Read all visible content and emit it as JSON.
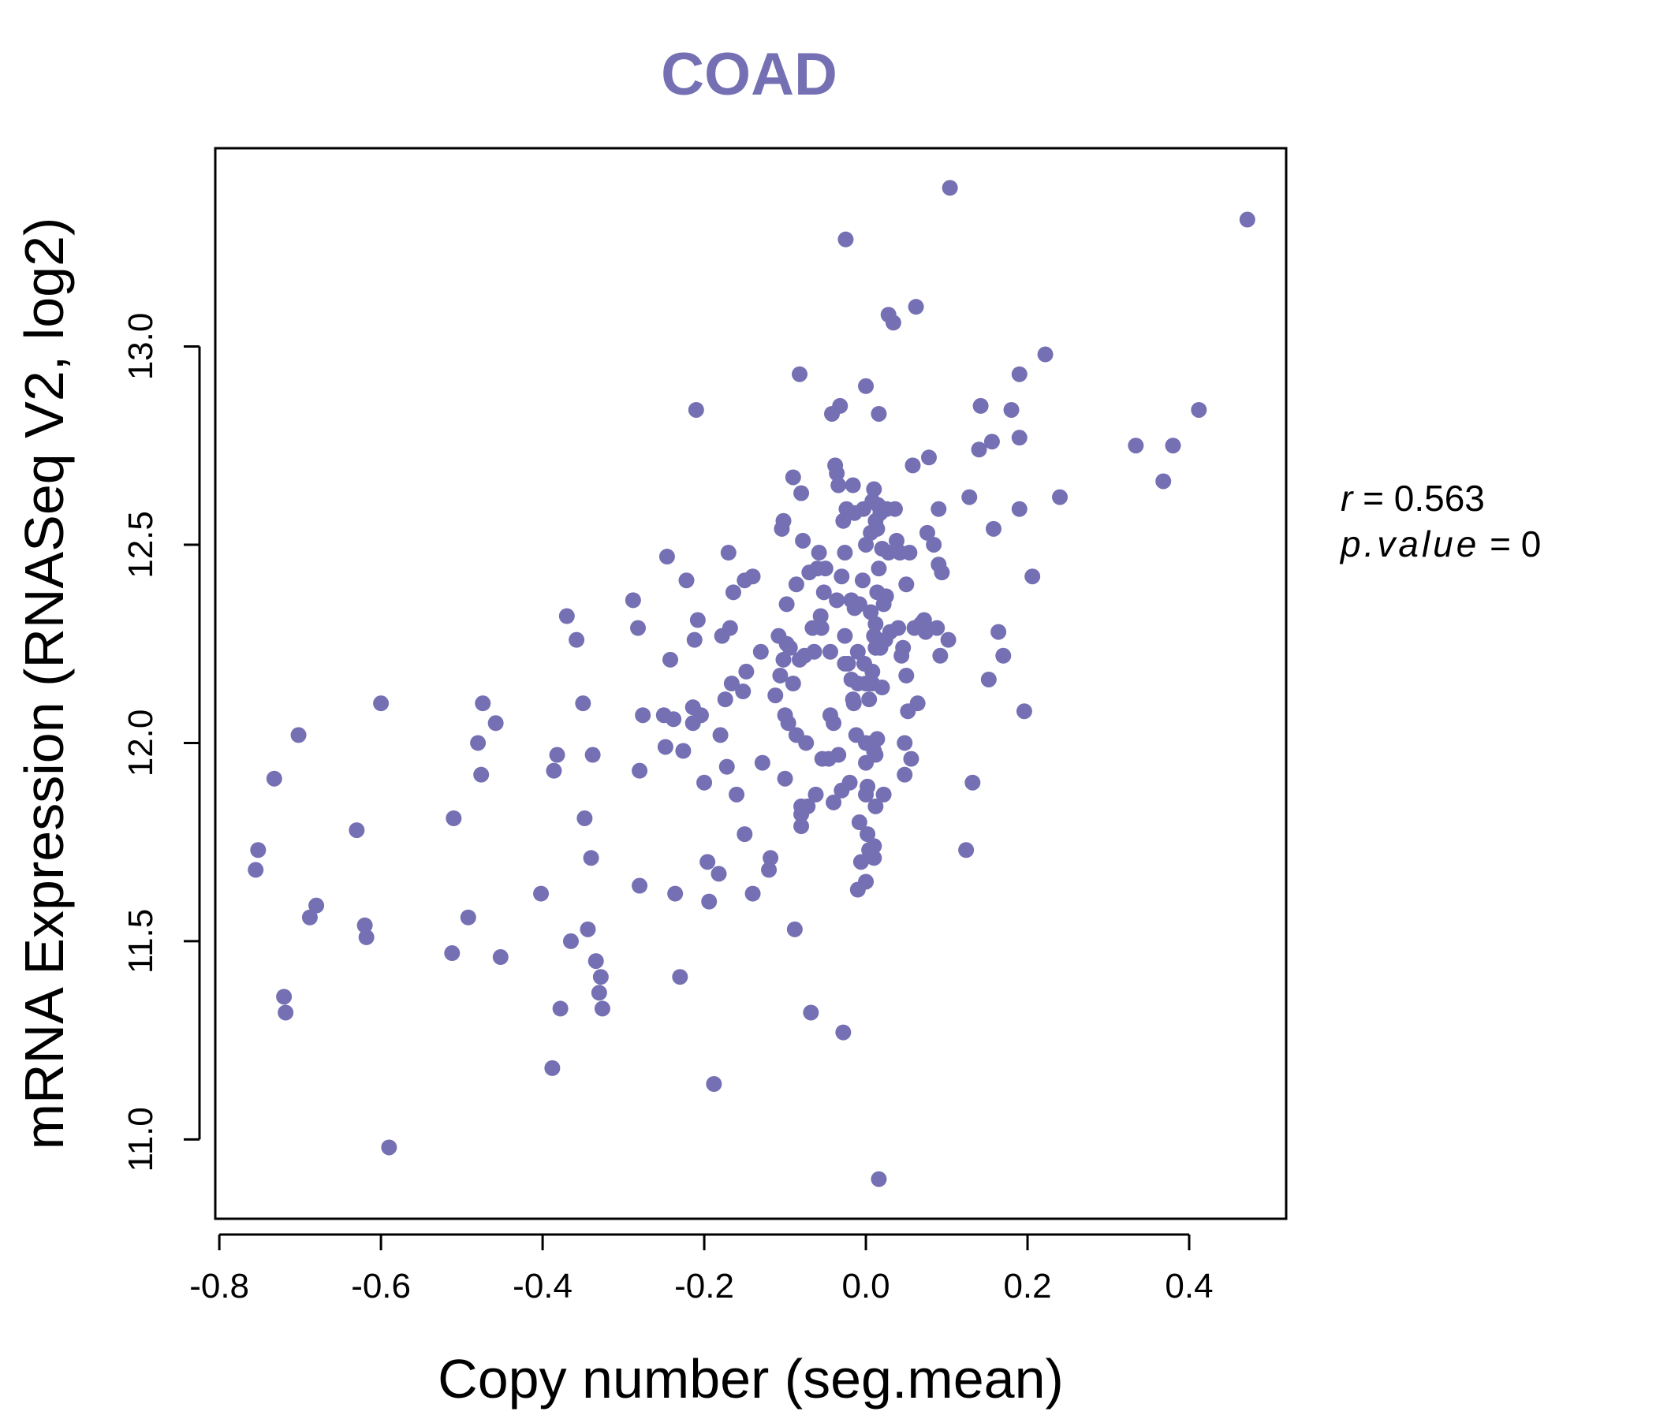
{
  "chart_data": {
    "type": "scatter",
    "title": "COAD",
    "xlabel": "Copy number (seg.mean)",
    "ylabel": "mRNA Expression (RNASeq V2, log2)",
    "xlim": [
      -0.805,
      0.52
    ],
    "ylim": [
      10.8,
      13.5
    ],
    "xticks": [
      -0.8,
      -0.6,
      -0.4,
      -0.2,
      0.0,
      0.2,
      0.4
    ],
    "xtick_labels": [
      "-0.8",
      "-0.6",
      "-0.4",
      "-0.2",
      "0.0",
      "0.2",
      "0.4"
    ],
    "yticks": [
      11.0,
      11.5,
      12.0,
      12.5,
      13.0
    ],
    "ytick_labels": [
      "11.0",
      "11.5",
      "12.0",
      "12.5",
      "13.0"
    ],
    "grid": false,
    "colors": {
      "points": "#7570b3",
      "title": "#7570b3",
      "axis": "#000000"
    },
    "stats": {
      "r_label": "r",
      "r_value": "0.563",
      "p_label": "p.value",
      "p_value": "0"
    },
    "points": [
      [
        -0.755,
        11.68
      ],
      [
        -0.752,
        11.73
      ],
      [
        -0.732,
        11.91
      ],
      [
        -0.72,
        11.36
      ],
      [
        -0.718,
        11.32
      ],
      [
        -0.702,
        12.02
      ],
      [
        -0.688,
        11.56
      ],
      [
        -0.68,
        11.59
      ],
      [
        -0.63,
        11.78
      ],
      [
        -0.62,
        11.54
      ],
      [
        -0.618,
        11.51
      ],
      [
        -0.6,
        12.1
      ],
      [
        -0.59,
        10.98
      ],
      [
        -0.512,
        11.47
      ],
      [
        -0.51,
        11.81
      ],
      [
        -0.492,
        11.56
      ],
      [
        -0.48,
        12.0
      ],
      [
        -0.476,
        11.92
      ],
      [
        -0.474,
        12.1
      ],
      [
        -0.458,
        12.05
      ],
      [
        -0.452,
        11.46
      ],
      [
        -0.402,
        11.62
      ],
      [
        -0.388,
        11.18
      ],
      [
        -0.386,
        11.93
      ],
      [
        -0.382,
        11.97
      ],
      [
        -0.378,
        11.33
      ],
      [
        -0.37,
        12.32
      ],
      [
        -0.365,
        11.5
      ],
      [
        -0.358,
        12.26
      ],
      [
        -0.35,
        12.1
      ],
      [
        -0.348,
        11.81
      ],
      [
        -0.344,
        11.53
      ],
      [
        -0.34,
        11.71
      ],
      [
        -0.338,
        11.97
      ],
      [
        -0.334,
        11.45
      ],
      [
        -0.33,
        11.37
      ],
      [
        -0.328,
        11.41
      ],
      [
        -0.326,
        11.33
      ],
      [
        -0.288,
        12.36
      ],
      [
        -0.282,
        12.29
      ],
      [
        -0.28,
        11.93
      ],
      [
        -0.28,
        11.64
      ],
      [
        -0.276,
        12.07
      ],
      [
        -0.25,
        12.07
      ],
      [
        -0.248,
        11.99
      ],
      [
        -0.246,
        12.47
      ],
      [
        -0.242,
        12.21
      ],
      [
        -0.238,
        12.06
      ],
      [
        -0.236,
        11.62
      ],
      [
        -0.23,
        11.41
      ],
      [
        -0.226,
        11.98
      ],
      [
        -0.222,
        12.41
      ],
      [
        -0.214,
        12.05
      ],
      [
        -0.214,
        12.09
      ],
      [
        -0.212,
        12.26
      ],
      [
        -0.21,
        12.84
      ],
      [
        -0.208,
        12.31
      ],
      [
        -0.204,
        12.07
      ],
      [
        -0.2,
        11.9
      ],
      [
        -0.196,
        11.7
      ],
      [
        -0.194,
        11.6
      ],
      [
        -0.188,
        11.14
      ],
      [
        -0.182,
        11.67
      ],
      [
        -0.18,
        12.02
      ],
      [
        -0.178,
        12.27
      ],
      [
        -0.174,
        12.11
      ],
      [
        -0.172,
        11.94
      ],
      [
        -0.17,
        12.48
      ],
      [
        -0.168,
        12.29
      ],
      [
        -0.166,
        12.15
      ],
      [
        -0.164,
        12.38
      ],
      [
        -0.16,
        11.87
      ],
      [
        -0.152,
        12.13
      ],
      [
        -0.15,
        12.41
      ],
      [
        -0.15,
        11.77
      ],
      [
        -0.148,
        12.18
      ],
      [
        -0.14,
        12.42
      ],
      [
        -0.14,
        11.62
      ],
      [
        -0.13,
        12.23
      ],
      [
        -0.128,
        11.95
      ],
      [
        -0.12,
        11.68
      ],
      [
        -0.118,
        11.71
      ],
      [
        -0.112,
        12.12
      ],
      [
        -0.108,
        12.27
      ],
      [
        -0.106,
        12.17
      ],
      [
        -0.104,
        12.54
      ],
      [
        -0.102,
        12.56
      ],
      [
        -0.102,
        12.21
      ],
      [
        -0.1,
        11.91
      ],
      [
        -0.1,
        12.07
      ],
      [
        -0.098,
        12.35
      ],
      [
        -0.098,
        12.25
      ],
      [
        -0.096,
        12.05
      ],
      [
        -0.094,
        12.24
      ],
      [
        -0.09,
        12.15
      ],
      [
        -0.09,
        12.67
      ],
      [
        -0.088,
        11.53
      ],
      [
        -0.086,
        12.4
      ],
      [
        -0.086,
        12.02
      ],
      [
        -0.082,
        12.93
      ],
      [
        -0.082,
        12.21
      ],
      [
        -0.08,
        11.82
      ],
      [
        -0.08,
        11.79
      ],
      [
        -0.08,
        12.63
      ],
      [
        -0.08,
        11.84
      ],
      [
        -0.078,
        12.51
      ],
      [
        -0.076,
        12.22
      ],
      [
        -0.074,
        12.0
      ],
      [
        -0.072,
        11.84
      ],
      [
        -0.07,
        12.43
      ],
      [
        -0.068,
        11.32
      ],
      [
        -0.066,
        12.29
      ],
      [
        -0.064,
        12.23
      ],
      [
        -0.062,
        11.87
      ],
      [
        -0.06,
        12.44
      ],
      [
        -0.058,
        12.48
      ],
      [
        -0.056,
        12.32
      ],
      [
        -0.055,
        12.29
      ],
      [
        -0.054,
        11.96
      ],
      [
        -0.052,
        12.38
      ],
      [
        -0.05,
        12.44
      ],
      [
        -0.046,
        11.96
      ],
      [
        -0.044,
        12.23
      ],
      [
        -0.044,
        12.07
      ],
      [
        -0.042,
        12.83
      ],
      [
        -0.04,
        11.85
      ],
      [
        -0.04,
        12.05
      ],
      [
        -0.038,
        12.7
      ],
      [
        -0.036,
        12.68
      ],
      [
        -0.036,
        12.36
      ],
      [
        -0.034,
        11.97
      ],
      [
        -0.034,
        12.65
      ],
      [
        -0.032,
        12.85
      ],
      [
        -0.03,
        11.88
      ],
      [
        -0.03,
        12.42
      ],
      [
        -0.028,
        12.56
      ],
      [
        -0.028,
        11.27
      ],
      [
        -0.026,
        12.48
      ],
      [
        -0.026,
        12.27
      ],
      [
        -0.026,
        12.2
      ],
      [
        -0.025,
        13.27
      ],
      [
        -0.024,
        12.59
      ],
      [
        -0.022,
        12.2
      ],
      [
        -0.02,
        11.9
      ],
      [
        -0.018,
        12.16
      ],
      [
        -0.018,
        12.36
      ],
      [
        -0.016,
        12.11
      ],
      [
        -0.016,
        12.65
      ],
      [
        -0.015,
        12.1
      ],
      [
        -0.014,
        12.58
      ],
      [
        -0.014,
        12.34
      ],
      [
        -0.012,
        12.02
      ],
      [
        -0.01,
        12.23
      ],
      [
        -0.01,
        12.15
      ],
      [
        -0.01,
        11.63
      ],
      [
        -0.008,
        12.35
      ],
      [
        -0.008,
        11.8
      ],
      [
        -0.006,
        11.7
      ],
      [
        -0.004,
        12.41
      ],
      [
        -0.003,
        12.59
      ],
      [
        -0.002,
        12.2
      ],
      [
        0.0,
        11.95
      ],
      [
        0.0,
        12.5
      ],
      [
        0.0,
        12.15
      ],
      [
        0.0,
        11.87
      ],
      [
        0.0,
        11.65
      ],
      [
        0.0,
        12.9
      ],
      [
        0.0,
        12.0
      ],
      [
        0.002,
        11.89
      ],
      [
        0.002,
        11.77
      ],
      [
        0.004,
        12.11
      ],
      [
        0.004,
        11.73
      ],
      [
        0.004,
        12.15
      ],
      [
        0.006,
        12.53
      ],
      [
        0.006,
        12.33
      ],
      [
        0.008,
        12.61
      ],
      [
        0.008,
        12.15
      ],
      [
        0.008,
        12.0
      ],
      [
        0.008,
        12.18
      ],
      [
        0.01,
        11.74
      ],
      [
        0.01,
        12.27
      ],
      [
        0.01,
        11.71
      ],
      [
        0.01,
        12.64
      ],
      [
        0.01,
        11.98
      ],
      [
        0.012,
        12.3
      ],
      [
        0.012,
        12.24
      ],
      [
        0.012,
        11.97
      ],
      [
        0.012,
        11.84
      ],
      [
        0.012,
        12.56
      ],
      [
        0.014,
        12.38
      ],
      [
        0.014,
        12.54
      ],
      [
        0.014,
        12.25
      ],
      [
        0.014,
        12.01
      ],
      [
        0.015,
        12.6
      ],
      [
        0.016,
        12.83
      ],
      [
        0.016,
        10.9
      ],
      [
        0.016,
        12.44
      ],
      [
        0.018,
        12.24
      ],
      [
        0.018,
        12.58
      ],
      [
        0.02,
        12.14
      ],
      [
        0.02,
        12.49
      ],
      [
        0.022,
        11.87
      ],
      [
        0.022,
        12.35
      ],
      [
        0.024,
        12.26
      ],
      [
        0.025,
        12.37
      ],
      [
        0.026,
        12.59
      ],
      [
        0.028,
        13.08
      ],
      [
        0.028,
        12.48
      ],
      [
        0.03,
        12.28
      ],
      [
        0.034,
        13.06
      ],
      [
        0.036,
        12.59
      ],
      [
        0.038,
        12.51
      ],
      [
        0.04,
        12.29
      ],
      [
        0.042,
        12.48
      ],
      [
        0.044,
        12.22
      ],
      [
        0.046,
        12.24
      ],
      [
        0.048,
        12.0
      ],
      [
        0.048,
        11.92
      ],
      [
        0.05,
        12.4
      ],
      [
        0.05,
        12.17
      ],
      [
        0.052,
        12.08
      ],
      [
        0.054,
        12.48
      ],
      [
        0.056,
        11.96
      ],
      [
        0.058,
        12.7
      ],
      [
        0.06,
        12.29
      ],
      [
        0.062,
        13.1
      ],
      [
        0.064,
        12.1
      ],
      [
        0.068,
        12.3
      ],
      [
        0.072,
        12.31
      ],
      [
        0.074,
        12.28
      ],
      [
        0.076,
        12.53
      ],
      [
        0.078,
        12.72
      ],
      [
        0.084,
        12.5
      ],
      [
        0.088,
        12.29
      ],
      [
        0.09,
        12.45
      ],
      [
        0.09,
        12.59
      ],
      [
        0.092,
        12.22
      ],
      [
        0.094,
        12.43
      ],
      [
        0.102,
        12.26
      ],
      [
        0.104,
        13.4
      ],
      [
        0.124,
        11.73
      ],
      [
        0.128,
        12.62
      ],
      [
        0.132,
        11.9
      ],
      [
        0.14,
        12.74
      ],
      [
        0.142,
        12.85
      ],
      [
        0.152,
        12.16
      ],
      [
        0.156,
        12.76
      ],
      [
        0.158,
        12.54
      ],
      [
        0.164,
        12.28
      ],
      [
        0.17,
        12.22
      ],
      [
        0.18,
        12.84
      ],
      [
        0.19,
        12.93
      ],
      [
        0.19,
        12.77
      ],
      [
        0.19,
        12.59
      ],
      [
        0.196,
        12.08
      ],
      [
        0.206,
        12.42
      ],
      [
        0.222,
        12.98
      ],
      [
        0.24,
        12.62
      ],
      [
        0.334,
        12.75
      ],
      [
        0.368,
        12.66
      ],
      [
        0.38,
        12.75
      ],
      [
        0.412,
        12.84
      ],
      [
        0.472,
        13.32
      ]
    ]
  }
}
